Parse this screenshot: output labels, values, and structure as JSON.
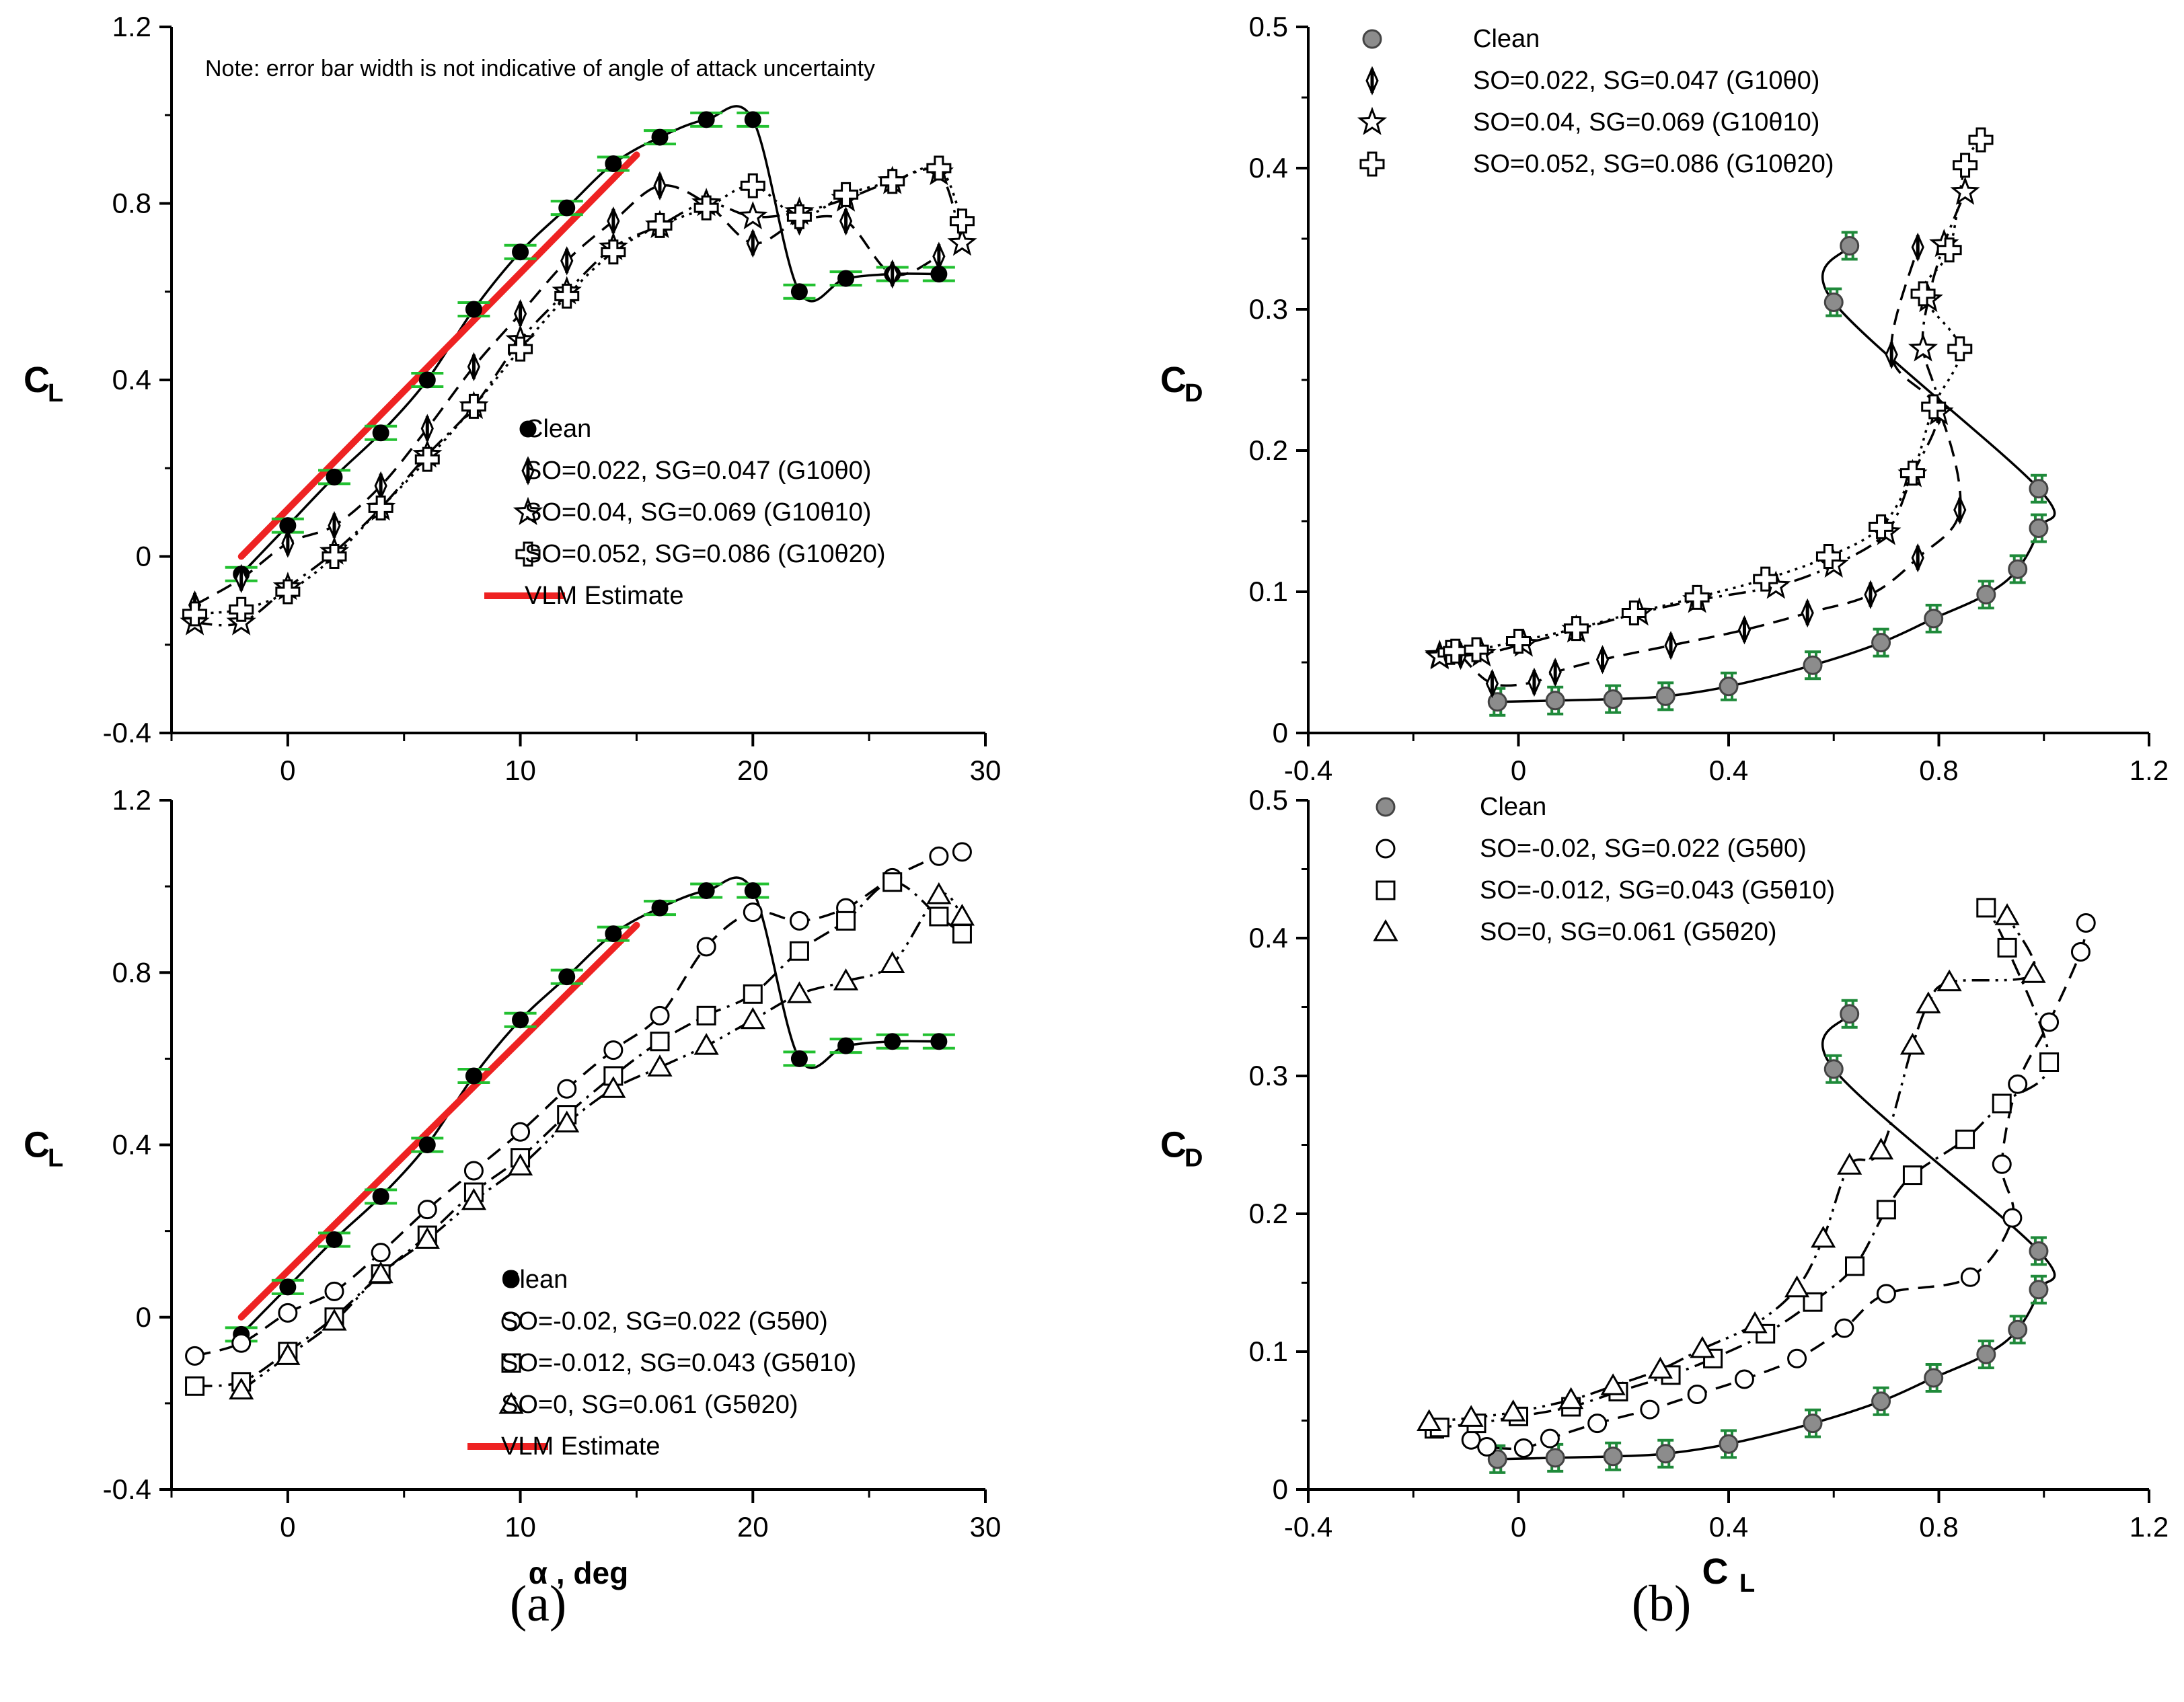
{
  "colors": {
    "vlm": "#ee2222",
    "errorbar": "#22c030",
    "errorbar_b": "#1f8a3a",
    "clean_fill_b": "#8c8c8c"
  },
  "panel_labels": [
    "(a)",
    "(b)"
  ],
  "chart_data": [
    {
      "id": "a-top",
      "type": "line",
      "xlim": [
        -5,
        30
      ],
      "ylim": [
        -0.4,
        1.2
      ],
      "xticks": [
        "0",
        "10",
        "20",
        "30"
      ],
      "yticks": [
        "-0.4",
        "0",
        "0.4",
        "0.8",
        "1.2"
      ],
      "xlabel": "",
      "ylabel": "C",
      "ylabel_sub": "L",
      "legend_position": "center-right",
      "annotations": [
        "Note: error bar width is not indicative of angle of attack uncertainty"
      ],
      "series": [
        {
          "name": "Clean",
          "marker": "filled-circle",
          "line": "solid",
          "errorbars": true,
          "x": [
            -2,
            0,
            2,
            4,
            6,
            8,
            10,
            12,
            14,
            16,
            18,
            20,
            22,
            24,
            26,
            28
          ],
          "y": [
            -0.04,
            0.07,
            0.18,
            0.28,
            0.4,
            0.56,
            0.69,
            0.79,
            0.89,
            0.95,
            0.99,
            0.99,
            0.6,
            0.63,
            0.64,
            0.64
          ]
        },
        {
          "name": "SO=0.022, SG=0.047 (G10θ0)",
          "marker": "diamond",
          "line": "dashed",
          "x": [
            -4,
            -2,
            0,
            2,
            4,
            6,
            8,
            10,
            12,
            14,
            16,
            18,
            20,
            22,
            24,
            26,
            28
          ],
          "y": [
            -0.11,
            -0.05,
            0.03,
            0.07,
            0.16,
            0.29,
            0.43,
            0.55,
            0.67,
            0.76,
            0.84,
            0.8,
            0.71,
            0.76,
            0.76,
            0.64,
            0.68
          ]
        },
        {
          "name": "SO=0.04, SG=0.069 (G10θ10)",
          "marker": "star",
          "line": "dash-dot",
          "x": [
            -4,
            -2,
            0,
            2,
            4,
            6,
            8,
            10,
            12,
            14,
            16,
            18,
            20,
            22,
            24,
            26,
            28,
            29
          ],
          "y": [
            -0.15,
            -0.15,
            -0.07,
            0.01,
            0.11,
            0.23,
            0.34,
            0.49,
            0.6,
            0.7,
            0.75,
            0.8,
            0.77,
            0.78,
            0.81,
            0.85,
            0.87,
            0.71
          ]
        },
        {
          "name": "SO=0.052, SG=0.086 (G10θ20)",
          "marker": "cross",
          "line": "dotted",
          "x": [
            -4,
            -2,
            0,
            2,
            4,
            6,
            8,
            10,
            12,
            14,
            16,
            18,
            20,
            22,
            24,
            26,
            28,
            29
          ],
          "y": [
            -0.13,
            -0.12,
            -0.08,
            0.0,
            0.11,
            0.22,
            0.34,
            0.47,
            0.59,
            0.69,
            0.75,
            0.79,
            0.84,
            0.77,
            0.82,
            0.85,
            0.88,
            0.76
          ]
        },
        {
          "name": "VLM Estimate",
          "marker": "none",
          "line": "thick-red",
          "x": [
            -2,
            15
          ],
          "y": [
            0.0,
            0.91
          ]
        }
      ]
    },
    {
      "id": "a-bottom",
      "type": "line",
      "xlim": [
        -5,
        30
      ],
      "ylim": [
        -0.4,
        1.2
      ],
      "xticks": [
        "0",
        "10",
        "20",
        "30"
      ],
      "yticks": [
        "-0.4",
        "0",
        "0.4",
        "0.8",
        "1.2"
      ],
      "xlabel": "α , deg",
      "ylabel": "C",
      "ylabel_sub": "L",
      "legend_position": "bottom-center",
      "series": [
        {
          "name": "Clean",
          "marker": "filled-circle",
          "line": "solid",
          "errorbars": true,
          "x": [
            -2,
            0,
            2,
            4,
            6,
            8,
            10,
            12,
            14,
            16,
            18,
            20,
            22,
            24,
            26,
            28
          ],
          "y": [
            -0.04,
            0.07,
            0.18,
            0.28,
            0.4,
            0.56,
            0.69,
            0.79,
            0.89,
            0.95,
            0.99,
            0.99,
            0.6,
            0.63,
            0.64,
            0.64
          ]
        },
        {
          "name": "SO=-0.02, SG=0.022 (G5θ0)",
          "marker": "open-circle",
          "line": "dashed",
          "x": [
            -4,
            -2,
            0,
            2,
            4,
            6,
            8,
            10,
            12,
            14,
            16,
            18,
            20,
            22,
            24,
            26,
            28,
            29
          ],
          "y": [
            -0.09,
            -0.06,
            0.01,
            0.06,
            0.15,
            0.25,
            0.34,
            0.43,
            0.53,
            0.62,
            0.7,
            0.86,
            0.94,
            0.92,
            0.95,
            1.02,
            1.07,
            1.08
          ]
        },
        {
          "name": "SO=-0.012, SG=0.043 (G5θ10)",
          "marker": "square",
          "line": "dash-dot",
          "x": [
            -4,
            -2,
            0,
            2,
            4,
            6,
            8,
            10,
            12,
            14,
            16,
            18,
            20,
            22,
            24,
            26,
            28,
            29
          ],
          "y": [
            -0.16,
            -0.15,
            -0.08,
            -0.0,
            0.1,
            0.19,
            0.29,
            0.37,
            0.47,
            0.56,
            0.64,
            0.7,
            0.75,
            0.85,
            0.92,
            1.01,
            0.93,
            0.89
          ]
        },
        {
          "name": "SO=0, SG=0.061 (G5θ20)",
          "marker": "triangle",
          "line": "dash-dot-dot",
          "x": [
            -2,
            0,
            2,
            4,
            6,
            8,
            10,
            12,
            14,
            16,
            18,
            20,
            22,
            24,
            26,
            28,
            29
          ],
          "y": [
            -0.17,
            -0.09,
            -0.01,
            0.1,
            0.18,
            0.27,
            0.35,
            0.45,
            0.53,
            0.58,
            0.63,
            0.69,
            0.75,
            0.78,
            0.82,
            0.98,
            0.93
          ]
        },
        {
          "name": "VLM Estimate",
          "marker": "none",
          "line": "thick-red",
          "x": [
            -2,
            15
          ],
          "y": [
            0.0,
            0.91
          ]
        }
      ]
    },
    {
      "id": "b-top",
      "type": "line",
      "xlim": [
        -0.4,
        1.2
      ],
      "ylim": [
        0,
        0.5
      ],
      "xticks": [
        "-0.4",
        "0",
        "0.4",
        "0.8",
        "1.2"
      ],
      "yticks": [
        "0",
        "0.1",
        "0.2",
        "0.3",
        "0.4",
        "0.5"
      ],
      "xlabel": "",
      "ylabel": "C",
      "ylabel_sub": "D",
      "legend_position": "top-left",
      "series": [
        {
          "name": "Clean",
          "marker": "grey-circle",
          "line": "solid",
          "errorbars": true,
          "x": [
            -0.04,
            0.07,
            0.18,
            0.28,
            0.4,
            0.56,
            0.69,
            0.79,
            0.89,
            0.95,
            0.99,
            0.99,
            0.6,
            0.63
          ],
          "y": [
            0.022,
            0.023,
            0.024,
            0.026,
            0.033,
            0.048,
            0.064,
            0.081,
            0.098,
            0.116,
            0.145,
            0.173,
            0.305,
            0.345
          ]
        },
        {
          "name": "SO=0.022, SG=0.047 (G10θ0)",
          "marker": "diamond",
          "line": "dashed",
          "x": [
            -0.11,
            -0.05,
            0.03,
            0.07,
            0.16,
            0.29,
            0.43,
            0.55,
            0.67,
            0.76,
            0.84,
            0.8,
            0.71,
            0.76
          ],
          "y": [
            0.055,
            0.035,
            0.036,
            0.043,
            0.052,
            0.062,
            0.073,
            0.085,
            0.098,
            0.124,
            0.158,
            0.228,
            0.268,
            0.344
          ]
        },
        {
          "name": "SO=0.04, SG=0.069 (G10θ10)",
          "marker": "star",
          "line": "dash-dot",
          "x": [
            -0.15,
            -0.15,
            -0.07,
            0.01,
            0.11,
            0.23,
            0.34,
            0.49,
            0.6,
            0.7,
            0.75,
            0.8,
            0.77,
            0.78,
            0.81,
            0.85
          ],
          "y": [
            0.055,
            0.054,
            0.056,
            0.063,
            0.073,
            0.085,
            0.094,
            0.104,
            0.119,
            0.142,
            0.183,
            0.227,
            0.272,
            0.307,
            0.346,
            0.383
          ]
        },
        {
          "name": "SO=0.052, SG=0.086 (G10θ20)",
          "marker": "cross",
          "line": "dotted",
          "x": [
            -0.13,
            -0.12,
            -0.08,
            0.0,
            0.11,
            0.22,
            0.34,
            0.47,
            0.59,
            0.69,
            0.75,
            0.79,
            0.84,
            0.77,
            0.82,
            0.85,
            0.88
          ],
          "y": [
            0.057,
            0.058,
            0.059,
            0.065,
            0.074,
            0.085,
            0.096,
            0.109,
            0.125,
            0.146,
            0.184,
            0.231,
            0.272,
            0.311,
            0.342,
            0.402,
            0.42
          ]
        }
      ]
    },
    {
      "id": "b-bottom",
      "type": "line",
      "xlim": [
        -0.4,
        1.2
      ],
      "ylim": [
        0,
        0.5
      ],
      "xticks": [
        "-0.4",
        "0",
        "0.4",
        "0.8",
        "1.2"
      ],
      "yticks": [
        "0",
        "0.1",
        "0.2",
        "0.3",
        "0.4",
        "0.5"
      ],
      "xlabel": "C",
      "xlabel_sub": "L",
      "ylabel": "C",
      "ylabel_sub": "D",
      "legend_position": "top-center",
      "series": [
        {
          "name": "Clean",
          "marker": "grey-circle",
          "line": "solid",
          "errorbars": true,
          "x": [
            -0.04,
            0.07,
            0.18,
            0.28,
            0.4,
            0.56,
            0.69,
            0.79,
            0.89,
            0.95,
            0.99,
            0.99,
            0.6,
            0.63
          ],
          "y": [
            0.022,
            0.023,
            0.024,
            0.026,
            0.033,
            0.048,
            0.064,
            0.081,
            0.098,
            0.116,
            0.145,
            0.173,
            0.305,
            0.345
          ]
        },
        {
          "name": "SO=-0.02, SG=0.022 (G5θ0)",
          "marker": "open-circle",
          "line": "dashed",
          "x": [
            -0.09,
            -0.06,
            0.01,
            0.06,
            0.15,
            0.25,
            0.34,
            0.43,
            0.53,
            0.62,
            0.7,
            0.86,
            0.94,
            0.92,
            0.95,
            1.01,
            1.07,
            1.08
          ],
          "y": [
            0.036,
            0.031,
            0.03,
            0.037,
            0.048,
            0.058,
            0.069,
            0.08,
            0.095,
            0.117,
            0.142,
            0.154,
            0.197,
            0.236,
            0.294,
            0.339,
            0.39,
            0.411
          ]
        },
        {
          "name": "SO=-0.012, SG=0.043 (G5θ10)",
          "marker": "square",
          "line": "dash-dot",
          "x": [
            -0.16,
            -0.15,
            -0.08,
            -0.0,
            0.1,
            0.19,
            0.29,
            0.37,
            0.47,
            0.56,
            0.64,
            0.7,
            0.75,
            0.85,
            0.92,
            1.01,
            0.93,
            0.89
          ],
          "y": [
            0.044,
            0.045,
            0.048,
            0.053,
            0.06,
            0.071,
            0.083,
            0.095,
            0.113,
            0.136,
            0.162,
            0.203,
            0.228,
            0.254,
            0.28,
            0.31,
            0.393,
            0.422
          ]
        },
        {
          "name": "SO=0, SG=0.061 (G5θ20)",
          "marker": "triangle",
          "line": "dash-dot-dot",
          "x": [
            -0.17,
            -0.09,
            -0.01,
            0.1,
            0.18,
            0.27,
            0.35,
            0.45,
            0.53,
            0.58,
            0.63,
            0.69,
            0.75,
            0.78,
            0.82,
            0.98,
            0.93
          ],
          "y": [
            0.049,
            0.052,
            0.056,
            0.065,
            0.075,
            0.087,
            0.102,
            0.12,
            0.146,
            0.182,
            0.235,
            0.246,
            0.322,
            0.352,
            0.368,
            0.374,
            0.416
          ]
        }
      ]
    }
  ]
}
